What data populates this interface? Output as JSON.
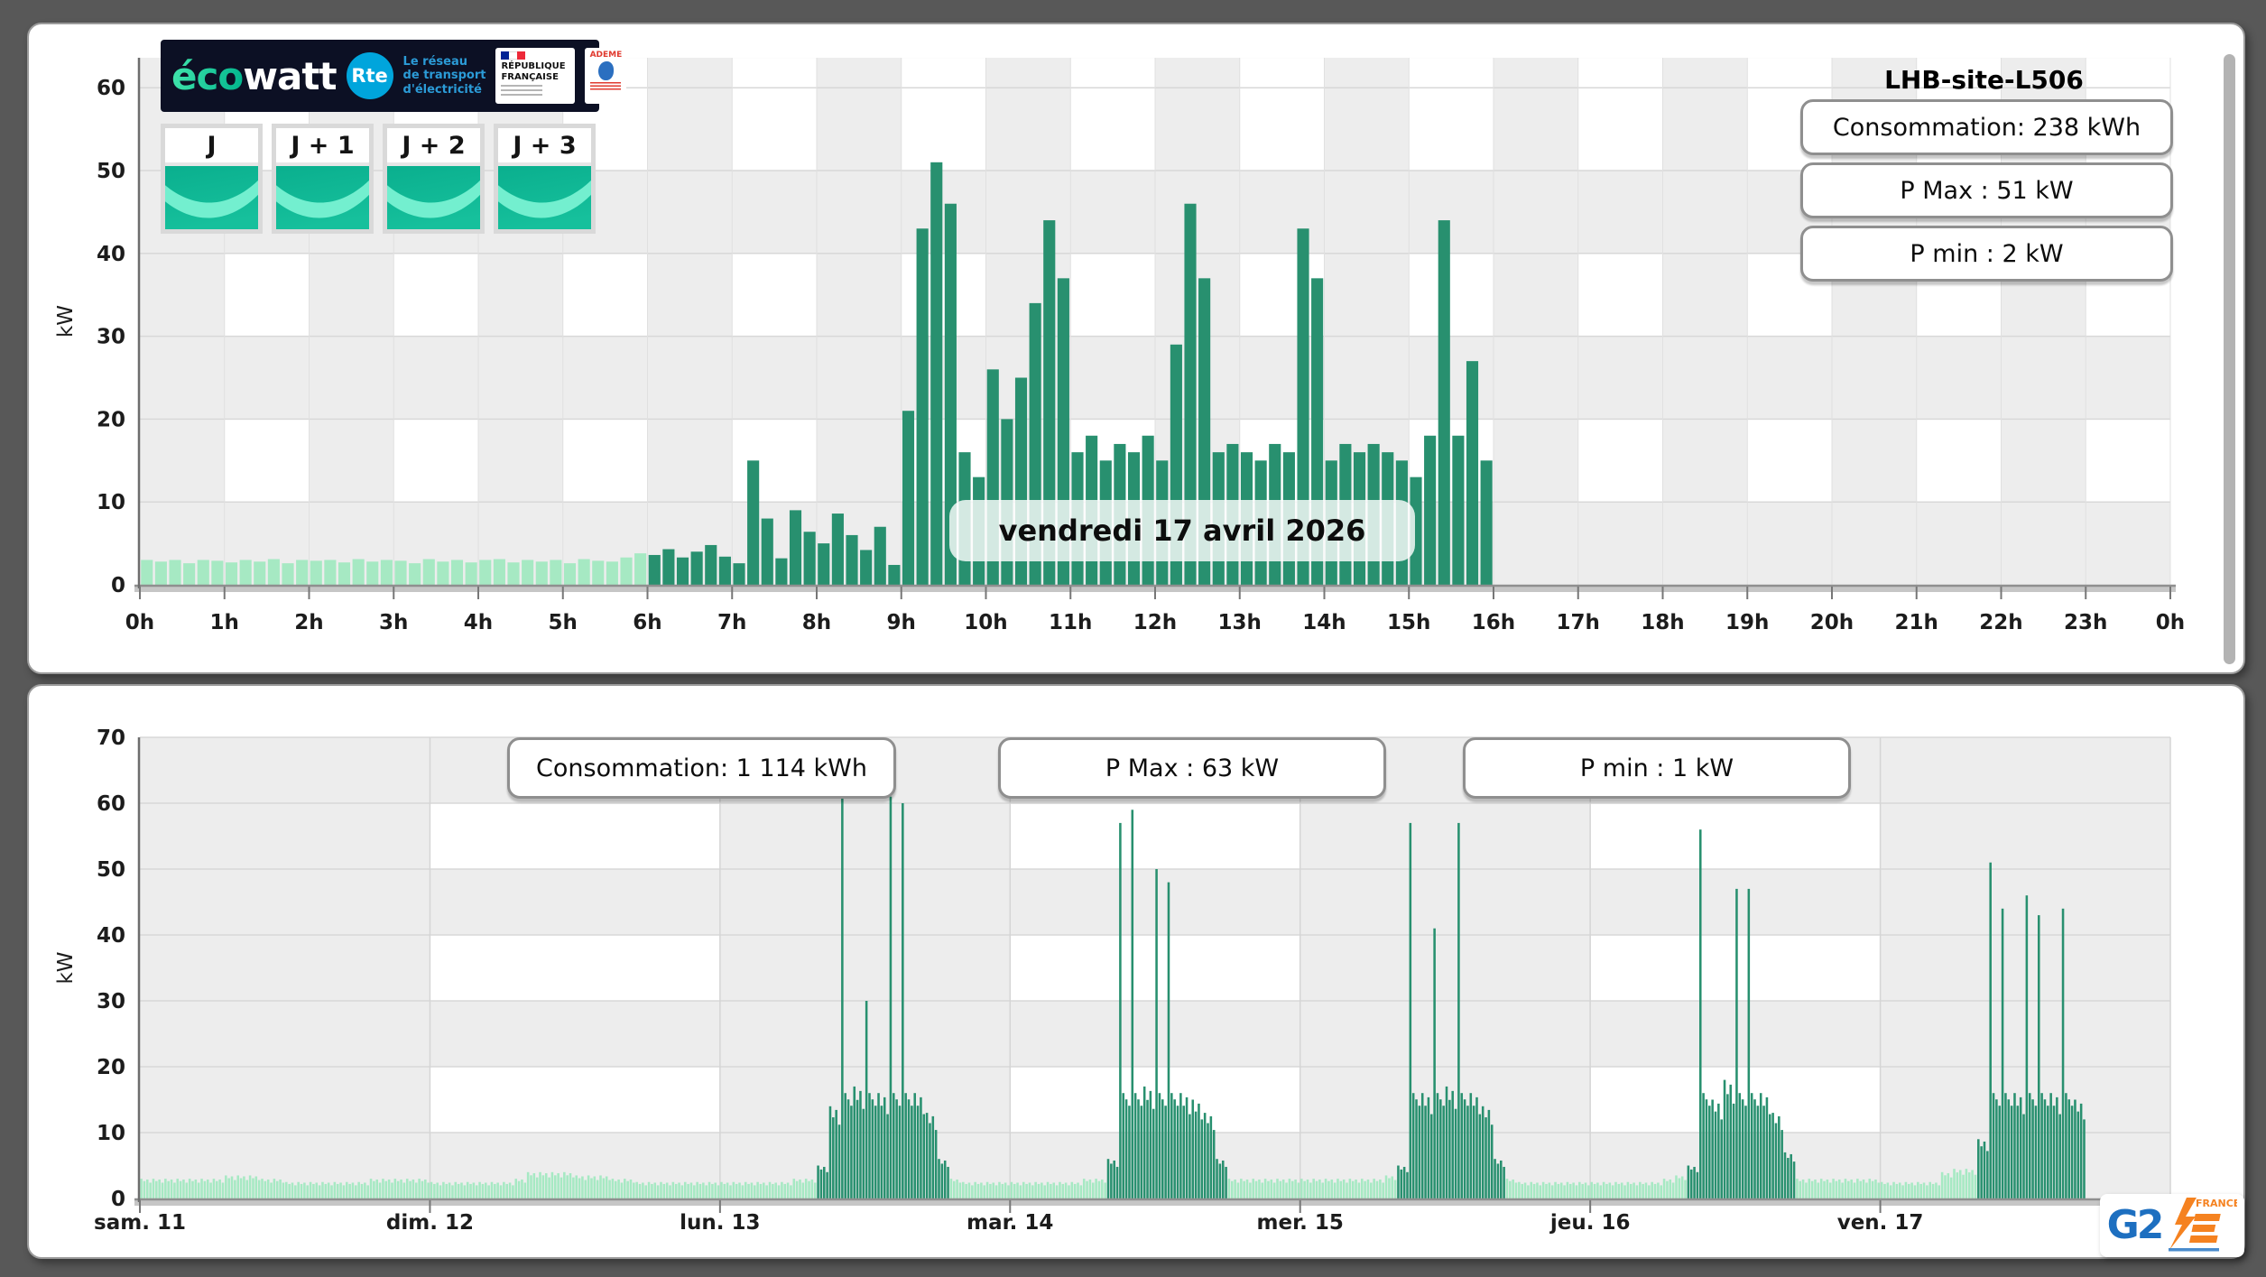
{
  "top_panel": {
    "title": "LHB-site-L506",
    "stats": [
      {
        "label": "Consommation: 238 kWh"
      },
      {
        "label": "P Max :  51 kW"
      },
      {
        "label": "P min : 2 kW"
      }
    ],
    "overlay_date": "vendredi 17 avril 2026",
    "ecowatt": {
      "brand_eco": "éco",
      "brand_watt": "watt",
      "rte_abbr": "Rte",
      "rte_lines": [
        "Le réseau",
        "de transport",
        "d'électricité"
      ],
      "republique": [
        "RÉPUBLIQUE",
        "FRANÇAISE"
      ],
      "ademe": "ADEME"
    },
    "day_tiles": [
      {
        "label": "J"
      },
      {
        "label": "J + 1"
      },
      {
        "label": "J + 2"
      },
      {
        "label": "J + 3"
      }
    ],
    "tile_colors": {
      "teal_top": "#0aaf8e",
      "teal_bottom": "#16c09c",
      "band": "#73efcf"
    }
  },
  "bottom_panel": {
    "stats": [
      {
        "label": "Consommation: 1 114 kWh"
      },
      {
        "label": "P Max :  63 kW"
      },
      {
        "label": "P min : 1 kW"
      }
    ],
    "logo_g2e": {
      "g2": "G2",
      "e": "E",
      "france": "FRANCE"
    }
  },
  "brand_colors": {
    "g2e_blue": "#1d6fc0",
    "g2e_orange": "#f58220",
    "rte_blue": "#00a5dc",
    "ecowatt_navy": "#0c1024"
  },
  "chart_data": [
    {
      "type": "bar",
      "ylabel": "kW",
      "ylim": [
        0,
        63.6
      ],
      "yticks": [
        0,
        10,
        20,
        30,
        40,
        50,
        60
      ],
      "xtick_labels": [
        "0h",
        "1h",
        "2h",
        "3h",
        "4h",
        "5h",
        "6h",
        "7h",
        "8h",
        "9h",
        "10h",
        "11h",
        "12h",
        "13h",
        "14h",
        "15h",
        "16h",
        "17h",
        "18h",
        "19h",
        "20h",
        "21h",
        "22h",
        "23h",
        "0h"
      ],
      "interval_minutes": 10,
      "series_start_hour": 0,
      "light_color": "#a6e9c3",
      "dark_color": "#28906f",
      "light_until_index": 36,
      "grid": "checker-1h",
      "legend": "none",
      "values": [
        3,
        2.8,
        3,
        2.6,
        3,
        2.9,
        2.7,
        3,
        2.8,
        3.1,
        2.6,
        3,
        2.9,
        3,
        2.7,
        3.1,
        2.8,
        3,
        2.9,
        2.6,
        3.1,
        2.8,
        3,
        2.7,
        3,
        3.1,
        2.7,
        3,
        2.8,
        3,
        2.6,
        3.1,
        2.9,
        2.8,
        3.3,
        3.8,
        3.6,
        4.3,
        3.3,
        4,
        4.8,
        3.4,
        2.6,
        15,
        8,
        3.2,
        9,
        6.4,
        5,
        8.6,
        6,
        4.2,
        7,
        2.4,
        21,
        43,
        51,
        46,
        16,
        13,
        26,
        20,
        25,
        34,
        44,
        37,
        16,
        18,
        15,
        17,
        16,
        18,
        15,
        29,
        46,
        37,
        16,
        17,
        16,
        15,
        17,
        16,
        43,
        37,
        15,
        17,
        16,
        17,
        16,
        15,
        13,
        18,
        44,
        18,
        27,
        15
      ]
    },
    {
      "type": "bar",
      "ylabel": "kW",
      "ylim": [
        0,
        70
      ],
      "yticks": [
        0,
        10,
        20,
        30,
        40,
        50,
        60,
        70
      ],
      "xtick_labels": [
        "sam. 11",
        "dim. 12",
        "lun. 13",
        "mar. 14",
        "mer. 15",
        "jeu. 16",
        "ven. 17"
      ],
      "bars_per_hour": 4,
      "dither": [
        1,
        0.88,
        0.96,
        0.8
      ],
      "spike_threshold": 25,
      "spike_base": 16,
      "light_color": "#a6e9c3",
      "dark_color": "#28906f",
      "grid": "checker-1day",
      "legend": "none",
      "days": [
        {
          "label": "sam. 11",
          "values": [
            3,
            3,
            3,
            3,
            3,
            3,
            3,
            3.5,
            3.5,
            3.5,
            3,
            3,
            2.5,
            2.5,
            2.5,
            2.5,
            2.5,
            2.5,
            2.5,
            3,
            3,
            3,
            3,
            3
          ],
          "dark": [
            0,
            0,
            0,
            0,
            0,
            0,
            0,
            0,
            0,
            0,
            0,
            0,
            0,
            0,
            0,
            0,
            0,
            0,
            0,
            0,
            0,
            0,
            0,
            0
          ]
        },
        {
          "label": "dim. 12",
          "values": [
            2.5,
            2.5,
            2.5,
            2.5,
            2.5,
            2.5,
            2.5,
            3,
            4,
            4,
            4,
            4,
            3.5,
            3.5,
            3.5,
            3,
            3,
            2.5,
            2.5,
            2.5,
            2.5,
            2.5,
            2.5,
            2.5
          ],
          "dark": [
            0,
            0,
            0,
            0,
            0,
            0,
            0,
            0,
            0,
            0,
            0,
            0,
            0,
            0,
            0,
            0,
            0,
            0,
            0,
            0,
            0,
            0,
            0,
            0
          ]
        },
        {
          "label": "lun. 13",
          "values": [
            2.5,
            2.5,
            2.5,
            2.5,
            2.5,
            2.5,
            3,
            3,
            5,
            14,
            63,
            17,
            30,
            16,
            61,
            60,
            16,
            13,
            6,
            3,
            2.5,
            2.5,
            2.5,
            2.5
          ],
          "dark": [
            0,
            0,
            0,
            0,
            0,
            0,
            0,
            0,
            1,
            1,
            1,
            1,
            1,
            1,
            1,
            1,
            1,
            1,
            1,
            0,
            0,
            0,
            0,
            0
          ]
        },
        {
          "label": "mar. 14",
          "values": [
            2.5,
            2.5,
            2.5,
            2.5,
            2.5,
            2.5,
            3,
            3,
            6,
            57,
            59,
            17,
            50,
            48,
            16,
            15,
            13,
            6,
            3,
            3,
            3,
            3,
            3,
            3
          ],
          "dark": [
            0,
            0,
            0,
            0,
            0,
            0,
            0,
            0,
            1,
            1,
            1,
            1,
            1,
            1,
            1,
            1,
            1,
            1,
            0,
            0,
            0,
            0,
            0,
            0
          ]
        },
        {
          "label": "mer. 15",
          "values": [
            3,
            3,
            3,
            3,
            3,
            3,
            3,
            3.5,
            5,
            57,
            16,
            41,
            17,
            57,
            16,
            14,
            6,
            3,
            2.5,
            2.5,
            2.5,
            2.5,
            2.5,
            2.5
          ],
          "dark": [
            0,
            0,
            0,
            0,
            0,
            0,
            0,
            0,
            1,
            1,
            1,
            1,
            1,
            1,
            1,
            1,
            1,
            0,
            0,
            0,
            0,
            0,
            0,
            0
          ]
        },
        {
          "label": "jeu. 16",
          "values": [
            2.5,
            2.5,
            2.5,
            2.5,
            2.5,
            2.5,
            3,
            3.5,
            5,
            56,
            15,
            18,
            47,
            47,
            16,
            13,
            7,
            3,
            3,
            3,
            3,
            3,
            3,
            3
          ],
          "dark": [
            0,
            0,
            0,
            0,
            0,
            0,
            0,
            0,
            1,
            1,
            1,
            1,
            1,
            1,
            1,
            1,
            1,
            0,
            0,
            0,
            0,
            0,
            0,
            0
          ]
        },
        {
          "label": "ven. 17",
          "values": [
            2.5,
            2.5,
            2.5,
            2.5,
            2.5,
            4,
            4.5,
            4.5,
            9,
            51,
            44,
            16,
            46,
            43,
            16,
            44,
            15,
            0,
            0,
            0,
            0,
            0,
            0,
            0
          ],
          "dark": [
            0,
            0,
            0,
            0,
            0,
            0,
            0,
            0,
            1,
            1,
            1,
            1,
            1,
            1,
            1,
            1,
            1,
            0,
            0,
            0,
            0,
            0,
            0,
            0
          ]
        }
      ]
    }
  ]
}
